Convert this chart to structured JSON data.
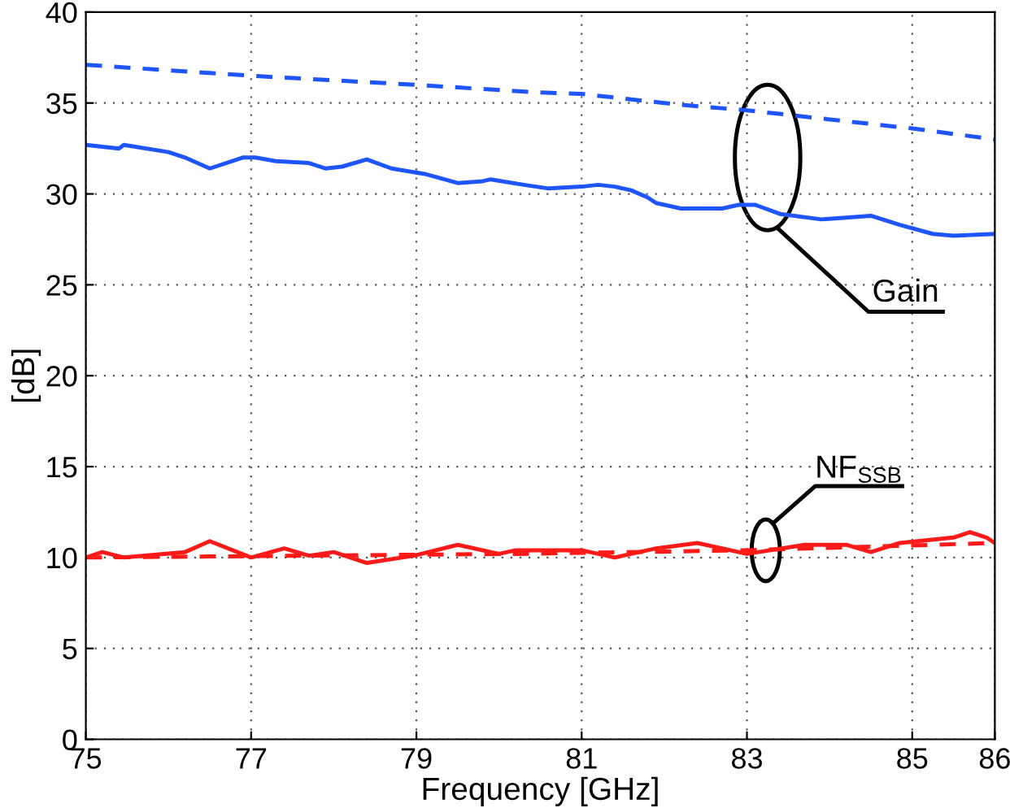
{
  "chart_data": {
    "type": "line",
    "xlabel": "Frequency [GHz]",
    "ylabel": "[dB]",
    "xlim": [
      75,
      86
    ],
    "xticks": [
      75,
      77,
      79,
      81,
      83,
      85,
      86
    ],
    "ylim": [
      0,
      40
    ],
    "yticks": [
      0,
      5,
      10,
      15,
      20,
      25,
      30,
      35,
      40
    ],
    "grid": true,
    "series": [
      {
        "color": "#1f55ff",
        "line_style": "dashed",
        "x": [
          75,
          77,
          79,
          80.4,
          81,
          82.2,
          83,
          84.2,
          85,
          86
        ],
        "values": [
          37.1,
          36.5,
          36.0,
          35.6,
          35.5,
          34.9,
          34.6,
          34.0,
          33.6,
          33.0
        ]
      },
      {
        "color": "#1f55ff",
        "line_style": "solid",
        "x": [
          75,
          75.4,
          75.46,
          76.0,
          76.2,
          76.5,
          76.9,
          77.05,
          77.3,
          77.7,
          77.9,
          78.1,
          78.4,
          78.7,
          79.1,
          79.5,
          79.8,
          79.9,
          80.3,
          80.6,
          81,
          81.2,
          81.4,
          81.6,
          81.8,
          81.9,
          82.2,
          82.7,
          82.9,
          83.1,
          83.4,
          83.9,
          84.5,
          84.85,
          85.25,
          85.5,
          86
        ],
        "values": [
          32.7,
          32.5,
          32.7,
          32.3,
          32.0,
          31.4,
          32.0,
          32.0,
          31.8,
          31.7,
          31.4,
          31.5,
          31.9,
          31.4,
          31.1,
          30.6,
          30.7,
          30.8,
          30.5,
          30.3,
          30.4,
          30.5,
          30.4,
          30.2,
          29.8,
          29.5,
          29.2,
          29.2,
          29.4,
          29.4,
          28.9,
          28.6,
          28.8,
          28.3,
          27.8,
          27.7,
          27.8
        ]
      },
      {
        "color": "#ff1a1a",
        "line_style": "dashed",
        "x": [
          75,
          80.2,
          83,
          86
        ],
        "values": [
          10.0,
          10.2,
          10.4,
          10.8
        ]
      },
      {
        "color": "#ff1a1a",
        "line_style": "solid",
        "x": [
          75,
          75.2,
          75.46,
          76.2,
          76.5,
          77.0,
          77.4,
          77.7,
          78.0,
          78.4,
          78.97,
          79.5,
          80.0,
          80.2,
          81,
          81.4,
          81.9,
          82.4,
          83,
          83.7,
          84.2,
          84.5,
          84.85,
          85.5,
          85.7,
          85.9,
          86
        ],
        "values": [
          10.0,
          10.3,
          10.0,
          10.3,
          10.9,
          10.0,
          10.5,
          10.1,
          10.3,
          9.7,
          10.1,
          10.7,
          10.2,
          10.4,
          10.4,
          10.0,
          10.5,
          10.8,
          10.2,
          10.7,
          10.7,
          10.3,
          10.8,
          11.1,
          11.4,
          11.1,
          10.8
        ]
      }
    ],
    "annotations": [
      "Gain",
      "NF$_{SSB}$"
    ]
  }
}
